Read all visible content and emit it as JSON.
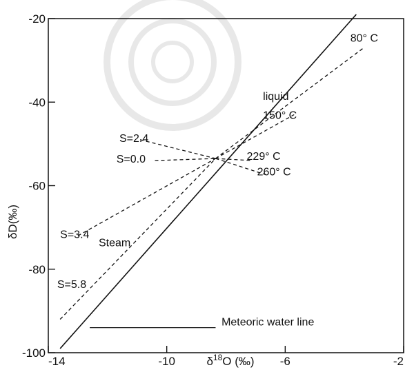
{
  "chart_data": {
    "type": "line",
    "xlabel_prefix": "δ",
    "xlabel_sup": "18",
    "xlabel_main": "O (‰)",
    "ylabel": "δD(‰)",
    "xlim": [
      -14,
      -2
    ],
    "ylim": [
      -100,
      -20
    ],
    "x_ticks": [
      {
        "value": -14,
        "label": "-14"
      },
      {
        "value": -10,
        "label": "-10"
      },
      {
        "value": -6,
        "label": "-6"
      },
      {
        "value": -2,
        "label": "-2"
      }
    ],
    "y_ticks": [
      {
        "value": -20,
        "label": "-20"
      },
      {
        "value": -40,
        "label": "-40"
      },
      {
        "value": -60,
        "label": "-60"
      },
      {
        "value": -80,
        "label": "-80"
      },
      {
        "value": -100,
        "label": "-100"
      }
    ],
    "lines": [
      {
        "name": "Meteoric water line",
        "style": "solid",
        "points": [
          [
            -13.6,
            -99
          ],
          [
            -3.6,
            -19
          ]
        ]
      },
      {
        "name": "80° C",
        "style": "dashed",
        "points": [
          [
            -8.35,
            -53.5
          ],
          [
            -3.35,
            -27
          ]
        ]
      },
      {
        "name": "150° C",
        "style": "dashed",
        "points": [
          [
            -8.35,
            -53.5
          ],
          [
            -5.7,
            -43
          ]
        ]
      },
      {
        "name": "229° C",
        "style": "dashed",
        "points": [
          [
            -8.35,
            -53.5
          ],
          [
            -7.1,
            -54
          ]
        ]
      },
      {
        "name": "260° C",
        "style": "dashed",
        "points": [
          [
            -8.35,
            -53.5
          ],
          [
            -6.6,
            -57.5
          ]
        ]
      },
      {
        "name": "S=2.4",
        "style": "dashed",
        "points": [
          [
            -10.9,
            -49
          ],
          [
            -8.35,
            -53.5
          ]
        ]
      },
      {
        "name": "S=0.0",
        "style": "dashed",
        "points": [
          [
            -10.4,
            -54
          ],
          [
            -8.35,
            -53.5
          ]
        ]
      },
      {
        "name": "S=3.4",
        "style": "dashed",
        "points": [
          [
            -13.0,
            -72
          ],
          [
            -8.35,
            -53.5
          ]
        ]
      },
      {
        "name": "S=5.8",
        "style": "dashed",
        "points": [
          [
            -13.6,
            -92
          ],
          [
            -8.35,
            -53.5
          ]
        ]
      }
    ],
    "mwl_label_line": {
      "points": [
        [
          -12.6,
          -94
        ],
        [
          -8.35,
          -94
        ]
      ]
    },
    "annotations": [
      {
        "text": "80° C",
        "x": -3.8,
        "y": -25.5
      },
      {
        "text": "liquid",
        "x": -6.75,
        "y": -39.5
      },
      {
        "text": "150° C",
        "x": -6.75,
        "y": -44
      },
      {
        "text": "S=2.4",
        "x": -11.6,
        "y": -49.5
      },
      {
        "text": "S=0.0",
        "x": -11.7,
        "y": -54.5
      },
      {
        "text": "229° C",
        "x": -7.3,
        "y": -53.8
      },
      {
        "text": "260° C",
        "x": -6.95,
        "y": -57.5
      },
      {
        "text": "S=3.4",
        "x": -13.6,
        "y": -72.5
      },
      {
        "text": "Steam",
        "x": -12.3,
        "y": -74.5
      },
      {
        "text": "S=5.8",
        "x": -13.7,
        "y": -84.5
      },
      {
        "text": "Meteoric water line",
        "x": -8.15,
        "y": -93.5
      }
    ]
  }
}
